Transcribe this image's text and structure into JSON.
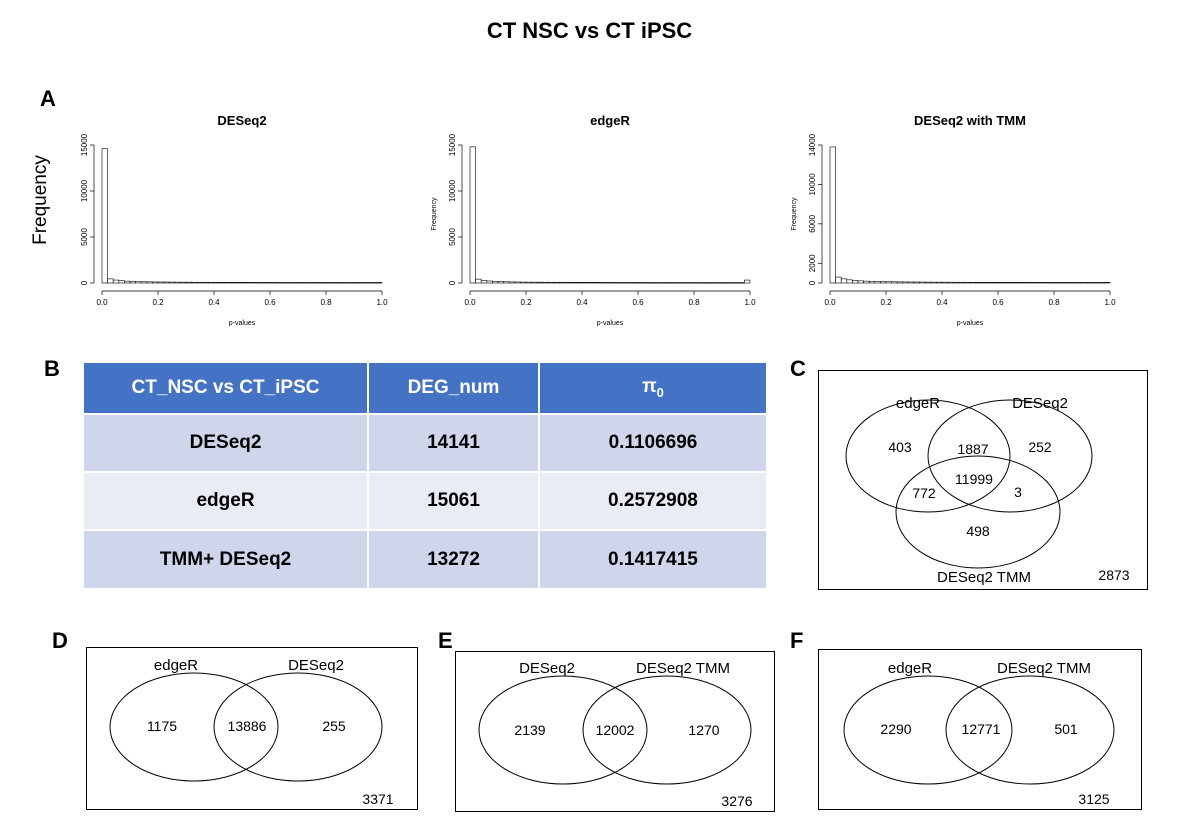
{
  "title": "CT NSC vs CT iPSC",
  "panels": {
    "A": "A",
    "B": "B",
    "C": "C",
    "D": "D",
    "E": "E",
    "F": "F"
  },
  "panelA": {
    "shared_ylabel": "Frequency",
    "histograms": [
      {
        "title": "DESeq2",
        "ylabel": "",
        "xlabel": "p-values",
        "yticks": [
          "0",
          "5000",
          "10000",
          "15000"
        ],
        "ymax": 15000,
        "xticks": [
          "0.0",
          "0.2",
          "0.4",
          "0.6",
          "0.8",
          "1.0"
        ]
      },
      {
        "title": "edgeR",
        "ylabel": "Frequency",
        "xlabel": "p-values",
        "yticks": [
          "0",
          "5000",
          "10000",
          "15000"
        ],
        "ymax": 15000,
        "xticks": [
          "0.0",
          "0.2",
          "0.4",
          "0.6",
          "0.8",
          "1.0"
        ]
      },
      {
        "title": "DESeq2 with TMM",
        "ylabel": "Frequency",
        "xlabel": "p-values",
        "yticks": [
          "0",
          "2000",
          "6000",
          "10000",
          "14000"
        ],
        "ymax": 14000,
        "xticks": [
          "0.0",
          "0.2",
          "0.4",
          "0.6",
          "0.8",
          "1.0"
        ]
      }
    ]
  },
  "chart_data": [
    {
      "type": "bar",
      "title": "DESeq2",
      "xlabel": "p-values",
      "ylabel": "",
      "xlim": [
        0,
        1
      ],
      "ylim": [
        0,
        15000
      ],
      "bin_width": 0.02,
      "values": [
        14600,
        450,
        320,
        250,
        200,
        170,
        150,
        135,
        125,
        115,
        110,
        105,
        100,
        95,
        90,
        88,
        85,
        82,
        80,
        78,
        76,
        74,
        72,
        70,
        68,
        66,
        64,
        62,
        60,
        60,
        58,
        58,
        56,
        56,
        55,
        55,
        54,
        54,
        53,
        53,
        52,
        52,
        52,
        52,
        52,
        52,
        52,
        52,
        52,
        60
      ]
    },
    {
      "type": "bar",
      "title": "edgeR",
      "xlabel": "p-values",
      "ylabel": "Frequency",
      "xlim": [
        0,
        1
      ],
      "ylim": [
        0,
        15000
      ],
      "bin_width": 0.02,
      "values": [
        14800,
        420,
        280,
        220,
        180,
        150,
        130,
        120,
        110,
        100,
        95,
        90,
        88,
        85,
        82,
        80,
        78,
        75,
        72,
        70,
        68,
        66,
        64,
        62,
        60,
        58,
        56,
        55,
        54,
        53,
        52,
        51,
        50,
        50,
        49,
        49,
        48,
        48,
        47,
        47,
        47,
        46,
        46,
        46,
        46,
        46,
        46,
        46,
        46,
        320
      ]
    },
    {
      "type": "bar",
      "title": "DESeq2 with TMM",
      "xlabel": "p-values",
      "ylabel": "Frequency",
      "xlim": [
        0,
        1
      ],
      "ylim": [
        0,
        14000
      ],
      "bin_width": 0.02,
      "values": [
        13800,
        600,
        420,
        320,
        260,
        220,
        190,
        170,
        155,
        140,
        130,
        122,
        115,
        110,
        105,
        100,
        96,
        92,
        88,
        85,
        82,
        80,
        78,
        76,
        74,
        72,
        70,
        68,
        66,
        65,
        64,
        63,
        62,
        61,
        60,
        60,
        59,
        59,
        58,
        58,
        57,
        57,
        57,
        56,
        56,
        56,
        56,
        56,
        56,
        70
      ]
    }
  ],
  "tableB": {
    "headers": [
      "CT_NSC vs CT_iPSC",
      "DEG_num",
      "π",
      "0"
    ],
    "rows": [
      [
        "DESeq2",
        "14141",
        "0.1106696"
      ],
      [
        "edgeR",
        "15061",
        "0.2572908"
      ],
      [
        "TMM+ DESeq2",
        "13272",
        "0.1417415"
      ]
    ]
  },
  "vennC": {
    "labels": [
      "edgeR",
      "DESeq2",
      "DESeq2 TMM"
    ],
    "values": {
      "edgeR_only": "403",
      "edgeR_DESeq2": "1887",
      "DESeq2_only": "252",
      "edgeR_TMM": "772",
      "all": "11999",
      "DESeq2_TMM": "3",
      "TMM_only": "498",
      "outside": "2873"
    }
  },
  "vennD": {
    "labels": [
      "edgeR",
      "DESeq2"
    ],
    "left": "1175",
    "both": "13886",
    "right": "255",
    "outside": "3371"
  },
  "vennE": {
    "labels": [
      "DESeq2",
      "DESeq2 TMM"
    ],
    "left": "2139",
    "both": "12002",
    "right": "1270",
    "outside": "3276"
  },
  "vennF": {
    "labels": [
      "edgeR",
      "DESeq2 TMM"
    ],
    "left": "2290",
    "both": "12771",
    "right": "501",
    "outside": "3125"
  }
}
